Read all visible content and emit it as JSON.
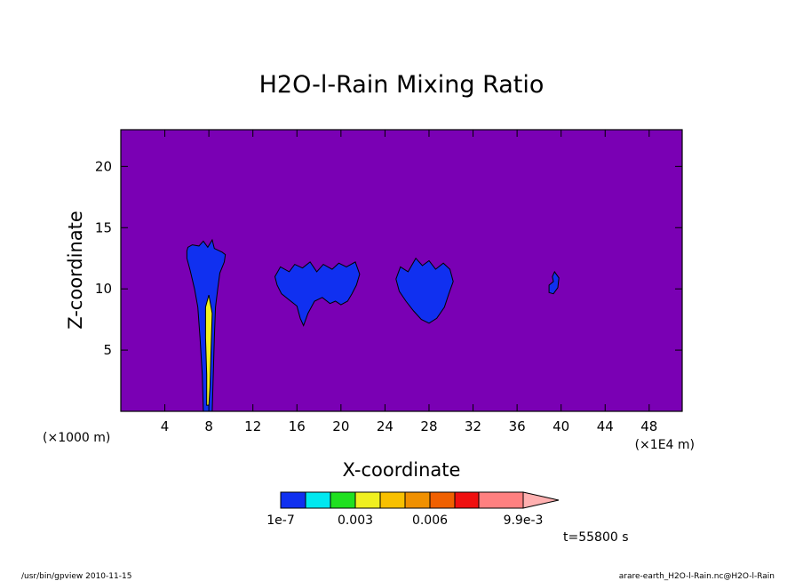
{
  "chart_data": {
    "type": "heatmap",
    "title": "H2O-l-Rain Mixing Ratio",
    "xlabel": "X-coordinate",
    "ylabel": "Z-coordinate",
    "x_unit_left": "(×1000 m)",
    "x_unit_right": "(×1E4 m)",
    "xlim": [
      0,
      51
    ],
    "ylim": [
      0,
      23
    ],
    "x_ticks": [
      4,
      8,
      12,
      16,
      20,
      24,
      28,
      32,
      36,
      40,
      44,
      48
    ],
    "y_ticks": [
      5,
      10,
      15,
      20
    ],
    "background_color": "#7a00b4",
    "regions": [
      {
        "level": "1e-7",
        "outline": [
          [
            6,
            13.1
          ],
          [
            6.1,
            13.4
          ],
          [
            6.5,
            13.6
          ],
          [
            7.1,
            13.5
          ],
          [
            7.5,
            13.9
          ],
          [
            7.9,
            13.4
          ],
          [
            8.3,
            14.0
          ],
          [
            8.5,
            13.3
          ],
          [
            9.2,
            13.0
          ],
          [
            9.5,
            12.8
          ],
          [
            9.4,
            12.2
          ],
          [
            9.0,
            11.3
          ],
          [
            8.8,
            10.0
          ],
          [
            8.6,
            8.5
          ],
          [
            8.5,
            6.0
          ],
          [
            8.4,
            3.0
          ],
          [
            8.3,
            0.0
          ],
          [
            7.5,
            0.0
          ],
          [
            7.4,
            3.0
          ],
          [
            7.2,
            6.0
          ],
          [
            7.0,
            8.5
          ],
          [
            6.7,
            10.0
          ],
          [
            6.3,
            11.5
          ],
          [
            6.0,
            12.5
          ]
        ]
      },
      {
        "level": "1e-7",
        "outline": [
          [
            14.0,
            11.0
          ],
          [
            14.5,
            11.8
          ],
          [
            15.3,
            11.4
          ],
          [
            15.8,
            12.0
          ],
          [
            16.5,
            11.7
          ],
          [
            17.2,
            12.2
          ],
          [
            17.8,
            11.4
          ],
          [
            18.4,
            12.0
          ],
          [
            19.2,
            11.6
          ],
          [
            19.8,
            12.1
          ],
          [
            20.5,
            11.8
          ],
          [
            21.3,
            12.2
          ],
          [
            21.7,
            11.2
          ],
          [
            21.4,
            10.3
          ],
          [
            21.0,
            9.6
          ],
          [
            20.6,
            9.0
          ],
          [
            20.0,
            8.7
          ],
          [
            19.5,
            9.0
          ],
          [
            19.0,
            8.8
          ],
          [
            18.3,
            9.3
          ],
          [
            17.6,
            9.0
          ],
          [
            17.0,
            8.0
          ],
          [
            16.6,
            7.0
          ],
          [
            16.3,
            7.6
          ],
          [
            16.0,
            8.6
          ],
          [
            15.3,
            9.1
          ],
          [
            14.6,
            9.6
          ],
          [
            14.2,
            10.3
          ]
        ]
      },
      {
        "level": "1e-7",
        "outline": [
          [
            25.0,
            10.8
          ],
          [
            25.4,
            11.8
          ],
          [
            26.1,
            11.4
          ],
          [
            26.8,
            12.5
          ],
          [
            27.4,
            11.9
          ],
          [
            28.0,
            12.3
          ],
          [
            28.6,
            11.6
          ],
          [
            29.3,
            12.1
          ],
          [
            29.9,
            11.6
          ],
          [
            30.2,
            10.6
          ],
          [
            29.8,
            9.6
          ],
          [
            29.4,
            8.5
          ],
          [
            28.7,
            7.6
          ],
          [
            28.0,
            7.2
          ],
          [
            27.3,
            7.5
          ],
          [
            26.6,
            8.2
          ],
          [
            25.9,
            9.0
          ],
          [
            25.3,
            9.8
          ]
        ]
      },
      {
        "level": "1e-7",
        "outline": [
          [
            39.4,
            11.4
          ],
          [
            39.8,
            10.9
          ],
          [
            39.7,
            10.1
          ],
          [
            39.3,
            9.6
          ],
          [
            38.9,
            9.7
          ],
          [
            38.9,
            10.3
          ],
          [
            39.3,
            10.6
          ],
          [
            39.2,
            11.0
          ]
        ]
      },
      {
        "level": "0.003",
        "outline": [
          [
            8.0,
            9.5
          ],
          [
            8.3,
            8.0
          ],
          [
            8.2,
            5.0
          ],
          [
            8.1,
            2.0
          ],
          [
            8.0,
            0.5
          ],
          [
            7.8,
            0.5
          ],
          [
            7.8,
            3.0
          ],
          [
            7.7,
            6.0
          ],
          [
            7.7,
            8.5
          ]
        ]
      }
    ],
    "colorbar": {
      "colors": [
        "#1030f0",
        "#00e8f0",
        "#20e020",
        "#f0f020",
        "#f8c000",
        "#f09000",
        "#f06000",
        "#f01010",
        "#ff8080",
        "#ffb0b0"
      ],
      "labels": [
        "1e-7",
        "0.003",
        "0.006",
        "9.9e-3"
      ],
      "label_positions": [
        0,
        3,
        6,
        10
      ]
    },
    "time_label": "t=55800 s"
  },
  "footer": {
    "left": "/usr/bin/gpview  2010-11-15",
    "right": "arare-earth_H2O-l-Rain.nc@H2O-l-Rain"
  }
}
